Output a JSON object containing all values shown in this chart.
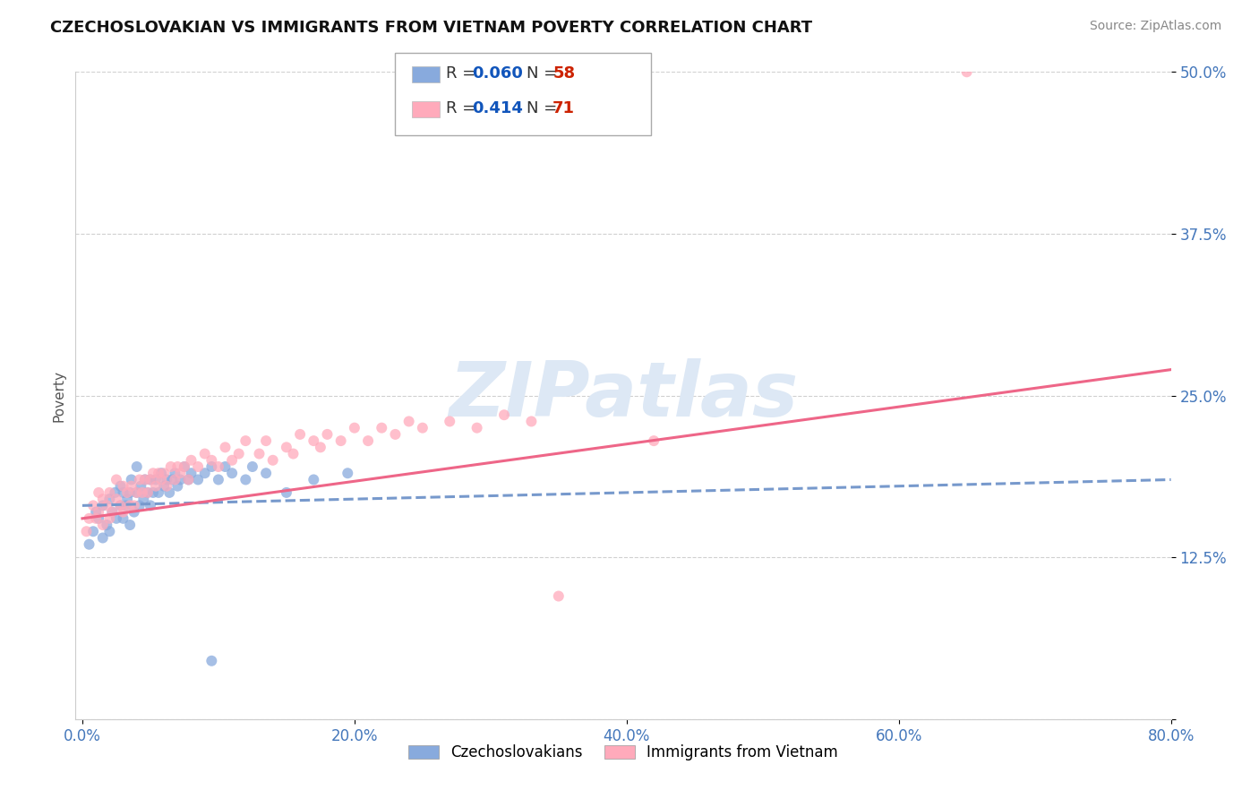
{
  "title": "CZECHOSLOVAKIAN VS IMMIGRANTS FROM VIETNAM POVERTY CORRELATION CHART",
  "source": "Source: ZipAtlas.com",
  "ylabel": "Poverty",
  "xlim": [
    -0.005,
    0.8
  ],
  "ylim": [
    0.0,
    0.5
  ],
  "xticks": [
    0.0,
    0.2,
    0.4,
    0.6,
    0.8
  ],
  "yticks": [
    0.0,
    0.125,
    0.25,
    0.375,
    0.5
  ],
  "xtick_labels": [
    "0.0%",
    "20.0%",
    "40.0%",
    "60.0%",
    "80.0%"
  ],
  "ytick_labels": [
    "",
    "12.5%",
    "25.0%",
    "37.5%",
    "50.0%"
  ],
  "grid_color": "#d0d0d0",
  "background_color": "#ffffff",
  "series": [
    {
      "name": "Czechoslovakians",
      "color": "#88aadd",
      "marker_alpha": 0.75,
      "R": 0.06,
      "N": 58,
      "x": [
        0.005,
        0.008,
        0.01,
        0.012,
        0.015,
        0.015,
        0.018,
        0.02,
        0.02,
        0.022,
        0.024,
        0.025,
        0.028,
        0.028,
        0.03,
        0.03,
        0.032,
        0.033,
        0.035,
        0.035,
        0.036,
        0.038,
        0.04,
        0.04,
        0.042,
        0.043,
        0.045,
        0.046,
        0.048,
        0.05,
        0.05,
        0.052,
        0.054,
        0.056,
        0.058,
        0.06,
        0.062,
        0.064,
        0.066,
        0.068,
        0.07,
        0.072,
        0.075,
        0.078,
        0.08,
        0.085,
        0.09,
        0.095,
        0.1,
        0.105,
        0.11,
        0.12,
        0.125,
        0.135,
        0.15,
        0.17,
        0.195,
        0.095
      ],
      "y": [
        0.135,
        0.145,
        0.16,
        0.155,
        0.14,
        0.165,
        0.15,
        0.17,
        0.145,
        0.16,
        0.175,
        0.155,
        0.165,
        0.18,
        0.155,
        0.175,
        0.165,
        0.17,
        0.15,
        0.175,
        0.185,
        0.16,
        0.175,
        0.195,
        0.165,
        0.18,
        0.17,
        0.185,
        0.175,
        0.165,
        0.185,
        0.175,
        0.185,
        0.175,
        0.19,
        0.18,
        0.185,
        0.175,
        0.185,
        0.19,
        0.18,
        0.185,
        0.195,
        0.185,
        0.19,
        0.185,
        0.19,
        0.195,
        0.185,
        0.195,
        0.19,
        0.185,
        0.195,
        0.19,
        0.175,
        0.185,
        0.19,
        0.045
      ],
      "trend_style": "--",
      "trend_color": "#7799cc",
      "trend_start_x": 0.0,
      "trend_end_x": 0.8,
      "trend_start_y": 0.165,
      "trend_end_y": 0.185
    },
    {
      "name": "Immigrants from Vietnam",
      "color": "#ffaabb",
      "marker_alpha": 0.75,
      "R": 0.414,
      "N": 71,
      "x": [
        0.003,
        0.005,
        0.008,
        0.01,
        0.012,
        0.012,
        0.015,
        0.015,
        0.018,
        0.02,
        0.02,
        0.022,
        0.025,
        0.025,
        0.028,
        0.03,
        0.03,
        0.033,
        0.035,
        0.036,
        0.038,
        0.04,
        0.042,
        0.044,
        0.046,
        0.048,
        0.05,
        0.052,
        0.054,
        0.056,
        0.058,
        0.06,
        0.062,
        0.065,
        0.068,
        0.07,
        0.072,
        0.075,
        0.078,
        0.08,
        0.085,
        0.09,
        0.095,
        0.1,
        0.105,
        0.11,
        0.115,
        0.12,
        0.13,
        0.135,
        0.14,
        0.15,
        0.155,
        0.16,
        0.17,
        0.175,
        0.18,
        0.19,
        0.2,
        0.21,
        0.22,
        0.23,
        0.24,
        0.25,
        0.27,
        0.29,
        0.31,
        0.33,
        0.35,
        0.42,
        0.65
      ],
      "y": [
        0.145,
        0.155,
        0.165,
        0.155,
        0.16,
        0.175,
        0.15,
        0.17,
        0.165,
        0.155,
        0.175,
        0.16,
        0.17,
        0.185,
        0.165,
        0.16,
        0.18,
        0.175,
        0.165,
        0.18,
        0.165,
        0.175,
        0.185,
        0.175,
        0.185,
        0.175,
        0.185,
        0.19,
        0.18,
        0.19,
        0.185,
        0.19,
        0.18,
        0.195,
        0.185,
        0.195,
        0.19,
        0.195,
        0.185,
        0.2,
        0.195,
        0.205,
        0.2,
        0.195,
        0.21,
        0.2,
        0.205,
        0.215,
        0.205,
        0.215,
        0.2,
        0.21,
        0.205,
        0.22,
        0.215,
        0.21,
        0.22,
        0.215,
        0.225,
        0.215,
        0.225,
        0.22,
        0.23,
        0.225,
        0.23,
        0.225,
        0.235,
        0.23,
        0.095,
        0.215,
        0.5
      ],
      "trend_style": "-",
      "trend_color": "#ee6688",
      "trend_start_x": 0.0,
      "trend_end_x": 0.8,
      "trend_start_y": 0.155,
      "trend_end_y": 0.27
    }
  ],
  "legend_R_color": "#1155bb",
  "legend_N_color": "#cc2200",
  "watermark_text": "ZIPatlas",
  "watermark_color": "#dde8f5",
  "title_fontsize": 13,
  "tick_color": "#4477bb",
  "tick_fontsize": 12,
  "ylabel_color": "#555555",
  "source_color": "#888888"
}
